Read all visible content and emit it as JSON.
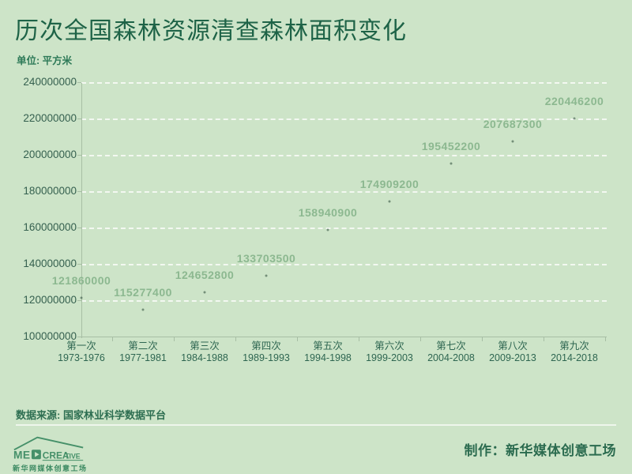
{
  "header": {
    "title": "历次全国森林资源清查森林面积变化",
    "unit_label": "单位: 平方米"
  },
  "chart_data": {
    "type": "scatter",
    "title": "历次全国森林资源清查森林面积变化",
    "xlabel": "",
    "ylabel": "平方米",
    "categories": [
      {
        "name": "第一次",
        "years": "1973-1976"
      },
      {
        "name": "第二次",
        "years": "1977-1981"
      },
      {
        "name": "第三次",
        "years": "1984-1988"
      },
      {
        "name": "第四次",
        "years": "1989-1993"
      },
      {
        "name": "第五次",
        "years": "1994-1998"
      },
      {
        "name": "第六次",
        "years": "1999-2003"
      },
      {
        "name": "第七次",
        "years": "2004-2008"
      },
      {
        "name": "第八次",
        "years": "2009-2013"
      },
      {
        "name": "第九次",
        "years": "2014-2018"
      }
    ],
    "values": [
      121860000,
      115277400,
      124652800,
      133703500,
      158940900,
      174909200,
      195452200,
      207687300,
      220446200
    ],
    "ylim": [
      100000000,
      240000000
    ],
    "ytick_step": 20000000,
    "grid": true,
    "grid_style": "dashed",
    "legend": false,
    "data_labels": true
  },
  "footer": {
    "source": "数据来源: 国家林业科学数据平台",
    "credit": "制作：新华媒体创意工场",
    "logo": {
      "brand_left": "ME",
      "brand_right_main": "CREA",
      "brand_right_small": "TIVE",
      "play_icon": "play-icon",
      "caption": "新华网媒体创意工场"
    }
  },
  "colors": {
    "background": "#cde4c8",
    "title": "#1e6347",
    "subtitle": "#2e7a58",
    "axis_line": "#a7bea4",
    "axis_text": "#35604f",
    "data_label": "#8cb890",
    "gridline": "rgba(255,255,255,0.75)",
    "point": "rgba(42,72,56,0.55)",
    "logo_green": "#459069",
    "credit_text": "#2b6b4f"
  }
}
